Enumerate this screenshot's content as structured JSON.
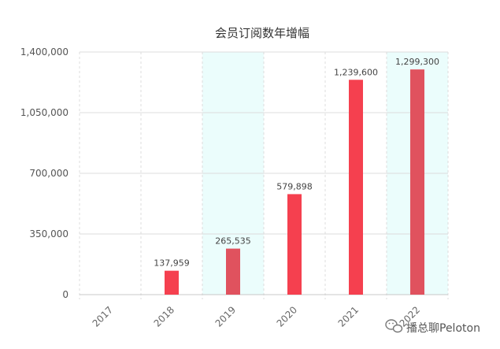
{
  "chart_data": {
    "type": "bar",
    "title": "会员订阅数年增幅",
    "xlabel": "",
    "ylabel": "",
    "categories": [
      "2017",
      "2018",
      "2019",
      "2020",
      "2021",
      "2022"
    ],
    "values": [
      0,
      137959,
      265535,
      579898,
      1239600,
      1299300
    ],
    "data_labels": [
      "",
      "137,959",
      "265,535",
      "579,898",
      "1,239,600",
      "1,299,300"
    ],
    "ylim": [
      0,
      1400000
    ],
    "yticks": [
      0,
      350000,
      700000,
      1050000,
      1400000
    ],
    "ytick_labels": [
      "0",
      "350,000",
      "700,000",
      "1,050,000",
      "1,400,000"
    ],
    "highlighted_categories": [
      "2019",
      "2022"
    ],
    "grid": true,
    "colors": {
      "bar": "#f5404f",
      "bar_highlighted": "#e0525e",
      "highlight_band": "#ebfdfc",
      "highlight_border": "#a8e0e0",
      "gridline": "#dcdcdc"
    }
  },
  "watermark": {
    "icon": "wechat-icon",
    "text": "播总聊Peloton"
  }
}
